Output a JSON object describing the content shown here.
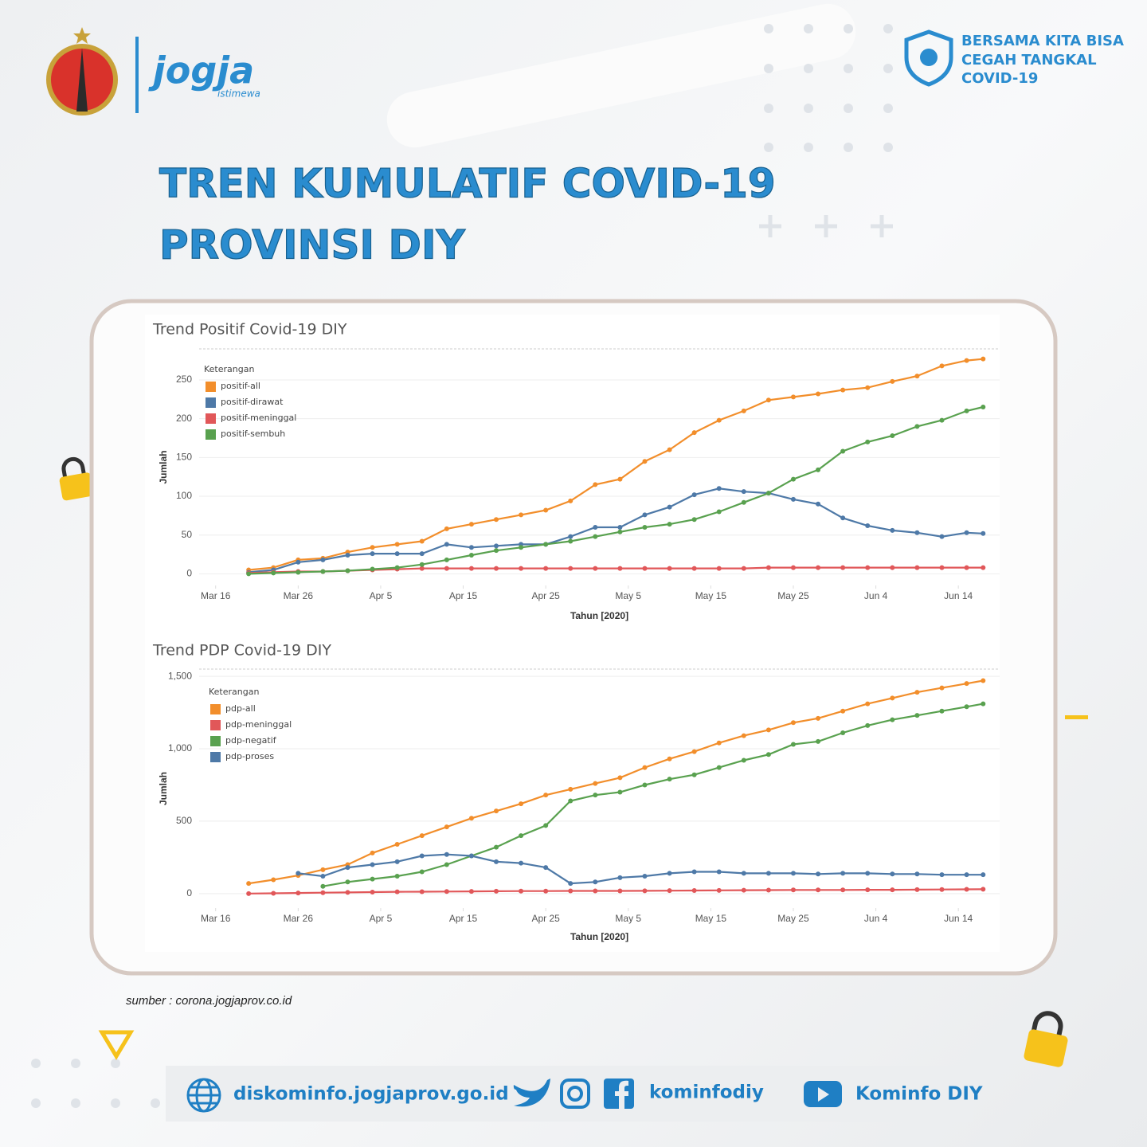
{
  "header": {
    "logo_text": "jogja",
    "logo_subtext": "istimewa",
    "title_lines": [
      "TREN KUMULATIF COVID-19",
      "PROVINSI DIY"
    ],
    "badge_lines": [
      "BERSAMA KITA BISA",
      "CEGAH TANGKAL",
      "COVID-19"
    ]
  },
  "source": "sumber : corona.jogjaprov.co.id",
  "footer": {
    "website": "diskominfo.jogjaprov.go.id",
    "social": "kominfodiy",
    "youtube": "Kominfo DIY"
  },
  "chart_data": [
    {
      "type": "line",
      "title": "Trend Positif Covid-19 DIY",
      "x_label": "Tahun [2020]",
      "y_label": "Jumlah",
      "legend_title": "Keterangan",
      "x": [
        "2020-03-20",
        "2020-03-23",
        "2020-03-26",
        "2020-03-29",
        "2020-04-01",
        "2020-04-04",
        "2020-04-07",
        "2020-04-10",
        "2020-04-13",
        "2020-04-16",
        "2020-04-19",
        "2020-04-22",
        "2020-04-25",
        "2020-04-28",
        "2020-05-01",
        "2020-05-04",
        "2020-05-07",
        "2020-05-10",
        "2020-05-13",
        "2020-05-16",
        "2020-05-19",
        "2020-05-22",
        "2020-05-25",
        "2020-05-28",
        "2020-05-31",
        "2020-06-03",
        "2020-06-06",
        "2020-06-09",
        "2020-06-12",
        "2020-06-15",
        "2020-06-17"
      ],
      "xlim": [
        "2020-03-14",
        "2020-06-19"
      ],
      "xticks": [
        {
          "value": "2020-03-16",
          "label": "Mar 16"
        },
        {
          "value": "2020-03-26",
          "label": "Mar 26"
        },
        {
          "value": "2020-04-05",
          "label": "Apr 5"
        },
        {
          "value": "2020-04-15",
          "label": "Apr 15"
        },
        {
          "value": "2020-04-25",
          "label": "Apr 25"
        },
        {
          "value": "2020-05-05",
          "label": "May 5"
        },
        {
          "value": "2020-05-15",
          "label": "May 15"
        },
        {
          "value": "2020-05-25",
          "label": "May 25"
        },
        {
          "value": "2020-06-04",
          "label": "Jun 4"
        },
        {
          "value": "2020-06-14",
          "label": "Jun 14"
        }
      ],
      "ylim": [
        -15,
        290
      ],
      "yticks": [
        0,
        50,
        100,
        150,
        200,
        250
      ],
      "grid": true,
      "series": [
        {
          "name": "positif-all",
          "color": "#f28e2b",
          "values": [
            5,
            8,
            18,
            20,
            28,
            34,
            38,
            42,
            58,
            64,
            70,
            76,
            82,
            94,
            115,
            122,
            145,
            160,
            182,
            198,
            210,
            224,
            228,
            232,
            237,
            240,
            248,
            255,
            268,
            275,
            277
          ]
        },
        {
          "name": "positif-dirawat",
          "color": "#4e79a7",
          "values": [
            2,
            5,
            15,
            18,
            24,
            26,
            26,
            26,
            38,
            34,
            36,
            38,
            38,
            48,
            60,
            60,
            76,
            86,
            102,
            110,
            106,
            104,
            96,
            90,
            72,
            62,
            56,
            53,
            48,
            53,
            52
          ]
        },
        {
          "name": "positif-meninggal",
          "color": "#e15759",
          "values": [
            1,
            2,
            3,
            3,
            4,
            5,
            6,
            7,
            7,
            7,
            7,
            7,
            7,
            7,
            7,
            7,
            7,
            7,
            7,
            7,
            7,
            8,
            8,
            8,
            8,
            8,
            8,
            8,
            8,
            8,
            8
          ]
        },
        {
          "name": "positif-sembuh",
          "color": "#59a14f",
          "values": [
            0,
            1,
            2,
            3,
            4,
            6,
            8,
            12,
            18,
            24,
            30,
            34,
            38,
            42,
            48,
            54,
            60,
            64,
            70,
            80,
            92,
            104,
            122,
            134,
            158,
            170,
            178,
            190,
            198,
            210,
            215
          ]
        }
      ]
    },
    {
      "type": "line",
      "title": "Trend PDP Covid-19 DIY",
      "x_label": "Tahun [2020]",
      "y_label": "Jumlah",
      "legend_title": "Keterangan",
      "x": [
        "2020-03-20",
        "2020-03-23",
        "2020-03-26",
        "2020-03-29",
        "2020-04-01",
        "2020-04-04",
        "2020-04-07",
        "2020-04-10",
        "2020-04-13",
        "2020-04-16",
        "2020-04-19",
        "2020-04-22",
        "2020-04-25",
        "2020-04-28",
        "2020-05-01",
        "2020-05-04",
        "2020-05-07",
        "2020-05-10",
        "2020-05-13",
        "2020-05-16",
        "2020-05-19",
        "2020-05-22",
        "2020-05-25",
        "2020-05-28",
        "2020-05-31",
        "2020-06-03",
        "2020-06-06",
        "2020-06-09",
        "2020-06-12",
        "2020-06-15",
        "2020-06-17"
      ],
      "xlim": [
        "2020-03-14",
        "2020-06-19"
      ],
      "xticks": [
        {
          "value": "2020-03-16",
          "label": "Mar 16"
        },
        {
          "value": "2020-03-26",
          "label": "Mar 26"
        },
        {
          "value": "2020-04-05",
          "label": "Apr 5"
        },
        {
          "value": "2020-04-15",
          "label": "Apr 15"
        },
        {
          "value": "2020-04-25",
          "label": "Apr 25"
        },
        {
          "value": "2020-05-05",
          "label": "May 5"
        },
        {
          "value": "2020-05-15",
          "label": "May 15"
        },
        {
          "value": "2020-05-25",
          "label": "May 25"
        },
        {
          "value": "2020-06-04",
          "label": "Jun 4"
        },
        {
          "value": "2020-06-14",
          "label": "Jun 14"
        }
      ],
      "ylim": [
        -100,
        1550
      ],
      "yticks": [
        0,
        500,
        {
          "value": 1000,
          "label": "1,000"
        },
        {
          "value": 1500,
          "label": "1,500"
        }
      ],
      "grid": true,
      "series": [
        {
          "name": "pdp-all",
          "color": "#f28e2b",
          "values": [
            70,
            95,
            125,
            165,
            200,
            280,
            340,
            400,
            460,
            520,
            570,
            620,
            680,
            720,
            760,
            800,
            870,
            930,
            980,
            1040,
            1090,
            1130,
            1180,
            1210,
            1260,
            1310,
            1350,
            1390,
            1420,
            1450,
            1470
          ]
        },
        {
          "name": "pdp-meninggal",
          "color": "#e15759",
          "values": [
            0,
            2,
            4,
            6,
            8,
            10,
            12,
            13,
            14,
            15,
            16,
            17,
            17,
            18,
            18,
            18,
            19,
            20,
            21,
            22,
            23,
            24,
            25,
            25,
            25,
            26,
            26,
            27,
            28,
            29,
            30
          ]
        },
        {
          "name": "pdp-negatif",
          "color": "#59a14f",
          "values": [
            null,
            null,
            null,
            50,
            80,
            100,
            120,
            150,
            200,
            260,
            320,
            400,
            470,
            640,
            680,
            700,
            750,
            790,
            820,
            870,
            920,
            960,
            1030,
            1050,
            1110,
            1160,
            1200,
            1230,
            1260,
            1290,
            1310
          ]
        },
        {
          "name": "pdp-proses",
          "color": "#4e79a7",
          "values": [
            null,
            null,
            140,
            120,
            180,
            200,
            220,
            260,
            270,
            260,
            220,
            210,
            180,
            70,
            80,
            110,
            120,
            140,
            150,
            150,
            140,
            140,
            140,
            135,
            140,
            140,
            135,
            135,
            130,
            130,
            130
          ]
        }
      ]
    }
  ]
}
